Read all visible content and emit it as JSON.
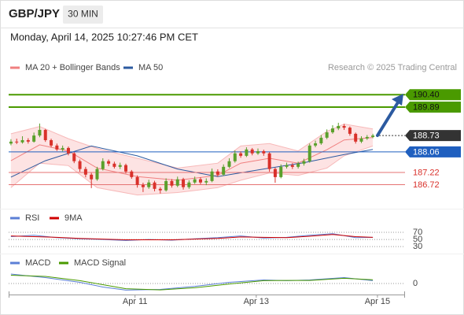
{
  "chart_data": {
    "type": "candlestick",
    "title": "GBP/JPY",
    "timeframe": "30 MIN",
    "subtitle": "Monday, April 14, 2025 10:27:46 PM CET",
    "source": "Research © 2025 Trading Central",
    "xlim": [
      -0.4,
      68.6
    ],
    "xticks": [
      {
        "value": 21.6,
        "label": "Apr 11"
      },
      {
        "value": 42.7,
        "label": "Apr 13"
      },
      {
        "value": 63.8,
        "label": "Apr 15"
      }
    ],
    "ylim": [
      185.9,
      191.05
    ],
    "up_color": "#5aa02c",
    "down_color": "#d9312b",
    "open": [
      188.4,
      188.48,
      188.45,
      188.54,
      188.48,
      188.73,
      188.96,
      188.54,
      188.32,
      188.16,
      188.22,
      188.0,
      187.68,
      187.36,
      187.13,
      186.94,
      187.36,
      187.68,
      187.58,
      187.45,
      187.52,
      187.26,
      187.03,
      186.71,
      186.62,
      186.81,
      186.55,
      186.49,
      186.87,
      186.68,
      186.94,
      186.62,
      186.81,
      186.94,
      186.81,
      186.87,
      187.26,
      187.13,
      187.45,
      187.68,
      188.0,
      187.9,
      188.16,
      188.0,
      188.09,
      188.0,
      187.36,
      187.03,
      187.45,
      187.52,
      187.45,
      187.58,
      187.68,
      188.32,
      188.41,
      188.64,
      188.86,
      189.02,
      189.12,
      189.05,
      188.8,
      188.48,
      188.61,
      188.67
    ],
    "high": [
      188.58,
      188.6,
      188.7,
      188.62,
      188.85,
      189.22,
      189.0,
      188.6,
      188.4,
      188.32,
      188.28,
      188.05,
      187.75,
      187.45,
      187.2,
      187.45,
      187.8,
      187.75,
      187.66,
      187.62,
      187.58,
      187.32,
      187.1,
      186.8,
      186.92,
      186.88,
      186.62,
      186.98,
      186.95,
      187.05,
      187.0,
      186.9,
      187.05,
      187.02,
      186.98,
      187.38,
      187.35,
      187.55,
      187.8,
      188.12,
      188.08,
      188.25,
      188.22,
      188.2,
      188.15,
      188.05,
      187.42,
      187.55,
      187.62,
      187.6,
      187.66,
      187.78,
      188.4,
      188.52,
      188.75,
      188.98,
      189.15,
      189.25,
      189.2,
      189.1,
      188.85,
      188.7,
      188.75,
      188.8
    ],
    "low": [
      188.33,
      188.38,
      188.4,
      188.4,
      188.44,
      188.66,
      188.47,
      188.25,
      188.1,
      188.08,
      187.92,
      187.6,
      187.25,
      187.02,
      186.58,
      186.88,
      187.3,
      187.48,
      187.38,
      187.36,
      187.18,
      186.96,
      186.6,
      186.42,
      186.55,
      186.45,
      186.36,
      186.44,
      186.6,
      186.62,
      186.52,
      186.55,
      186.75,
      186.74,
      186.7,
      186.82,
      187.05,
      187.08,
      187.4,
      187.62,
      187.82,
      187.85,
      187.92,
      187.94,
      187.9,
      187.25,
      186.8,
      186.98,
      187.38,
      187.36,
      187.38,
      187.5,
      187.62,
      188.25,
      188.35,
      188.58,
      188.8,
      188.95,
      188.96,
      188.72,
      188.4,
      188.42,
      188.55,
      188.62
    ],
    "close": [
      188.48,
      188.45,
      188.54,
      188.48,
      188.73,
      188.96,
      188.54,
      188.32,
      188.16,
      188.22,
      188.0,
      187.68,
      187.36,
      187.13,
      186.94,
      187.36,
      187.68,
      187.58,
      187.45,
      187.52,
      187.26,
      187.03,
      186.71,
      186.62,
      186.81,
      186.55,
      186.49,
      186.87,
      186.68,
      186.94,
      186.62,
      186.81,
      186.94,
      186.81,
      186.87,
      187.26,
      187.13,
      187.45,
      187.68,
      188.0,
      187.9,
      188.16,
      188.0,
      188.09,
      188.0,
      187.36,
      187.03,
      187.45,
      187.52,
      187.45,
      187.58,
      187.68,
      188.32,
      188.41,
      188.64,
      188.86,
      189.02,
      189.12,
      189.05,
      188.8,
      188.48,
      188.61,
      188.67,
      188.73
    ],
    "bands": {
      "name": "MA 20 + Bollinger Bands",
      "color": "#f08080",
      "fill": "#fde3e3",
      "x": [
        0,
        5,
        10,
        15,
        22,
        29,
        36,
        40,
        45,
        50,
        55,
        58,
        63
      ],
      "upper": [
        188.8,
        189.1,
        188.6,
        188.2,
        187.8,
        187.4,
        187.6,
        188.3,
        188.4,
        188.1,
        188.9,
        189.2,
        189.0
      ],
      "middle": [
        187.7,
        188.35,
        188.1,
        187.4,
        187.05,
        186.9,
        187.1,
        187.6,
        187.8,
        187.6,
        188.15,
        188.55,
        188.65
      ],
      "lower": [
        186.6,
        187.6,
        187.5,
        186.6,
        186.3,
        186.4,
        186.6,
        186.9,
        187.2,
        187.1,
        187.4,
        187.9,
        188.3
      ]
    },
    "ma50": {
      "name": "MA 50",
      "color": "#2c5aa0",
      "x": [
        0,
        6,
        14,
        22,
        29,
        36,
        44,
        51,
        58,
        63
      ],
      "values": [
        187.03,
        187.7,
        188.3,
        187.9,
        187.36,
        187.05,
        187.36,
        187.62,
        187.95,
        188.16
      ]
    },
    "levels": [
      {
        "value": 190.4,
        "label": "190.40",
        "color": "#4a9a00",
        "text_color": "#111",
        "box": true,
        "line": "solid"
      },
      {
        "value": 189.89,
        "label": "189.89",
        "color": "#4a9a00",
        "text_color": "#111",
        "box": true,
        "line": "solid"
      },
      {
        "value": 188.73,
        "label": "188.73",
        "color": "#333333",
        "text_color": "#fff",
        "box": true,
        "line": "dotted"
      },
      {
        "value": 188.06,
        "label": "188.06",
        "color": "#1f5fbf",
        "text_color": "#fff",
        "box": true,
        "line": "solid"
      },
      {
        "value": 187.22,
        "label": "187.22",
        "color": "#e57373",
        "text_color": "#d9312b",
        "box": false,
        "line": "solid"
      },
      {
        "value": 186.72,
        "label": "186.72",
        "color": "#e57373",
        "text_color": "#d9312b",
        "box": false,
        "line": "solid"
      }
    ],
    "rsi": {
      "ylim": [
        17,
        90
      ],
      "yticks": [
        70,
        50,
        30
      ],
      "series": [
        {
          "name": "RSI",
          "color": "#5b7fd6",
          "x": [
            0,
            4,
            8,
            12,
            16,
            20,
            24,
            28,
            32,
            36,
            40,
            44,
            48,
            52,
            56,
            60,
            63
          ],
          "values": [
            58,
            62,
            55,
            52,
            50,
            47,
            50,
            48,
            52,
            55,
            60,
            54,
            56,
            62,
            66,
            55,
            56
          ]
        },
        {
          "name": "9MA",
          "color": "#d00000",
          "x": [
            0,
            4,
            8,
            12,
            16,
            20,
            24,
            28,
            32,
            36,
            40,
            44,
            48,
            52,
            56,
            60,
            63
          ],
          "values": [
            60,
            58,
            56,
            53,
            51,
            49,
            49,
            49,
            51,
            53,
            57,
            56,
            55,
            59,
            64,
            58,
            56
          ]
        }
      ]
    },
    "macd": {
      "ylim": [
        -0.4,
        0.6
      ],
      "yticks": [
        0
      ],
      "series": [
        {
          "name": "MACD",
          "color": "#5b7fd6",
          "x": [
            0,
            6,
            12,
            16,
            20,
            26,
            32,
            38,
            44,
            48,
            52,
            58,
            63
          ],
          "values": [
            0.4,
            0.25,
            0.05,
            -0.15,
            -0.28,
            -0.25,
            -0.12,
            0.05,
            0.15,
            0.12,
            0.15,
            0.25,
            0.12
          ]
        },
        {
          "name": "MACD Signal",
          "color": "#4a9a00",
          "x": [
            0,
            6,
            12,
            16,
            20,
            26,
            32,
            38,
            44,
            48,
            52,
            58,
            63
          ],
          "values": [
            0.35,
            0.3,
            0.12,
            -0.05,
            -0.22,
            -0.27,
            -0.18,
            -0.02,
            0.12,
            0.13,
            0.13,
            0.22,
            0.16
          ]
        }
      ]
    }
  }
}
